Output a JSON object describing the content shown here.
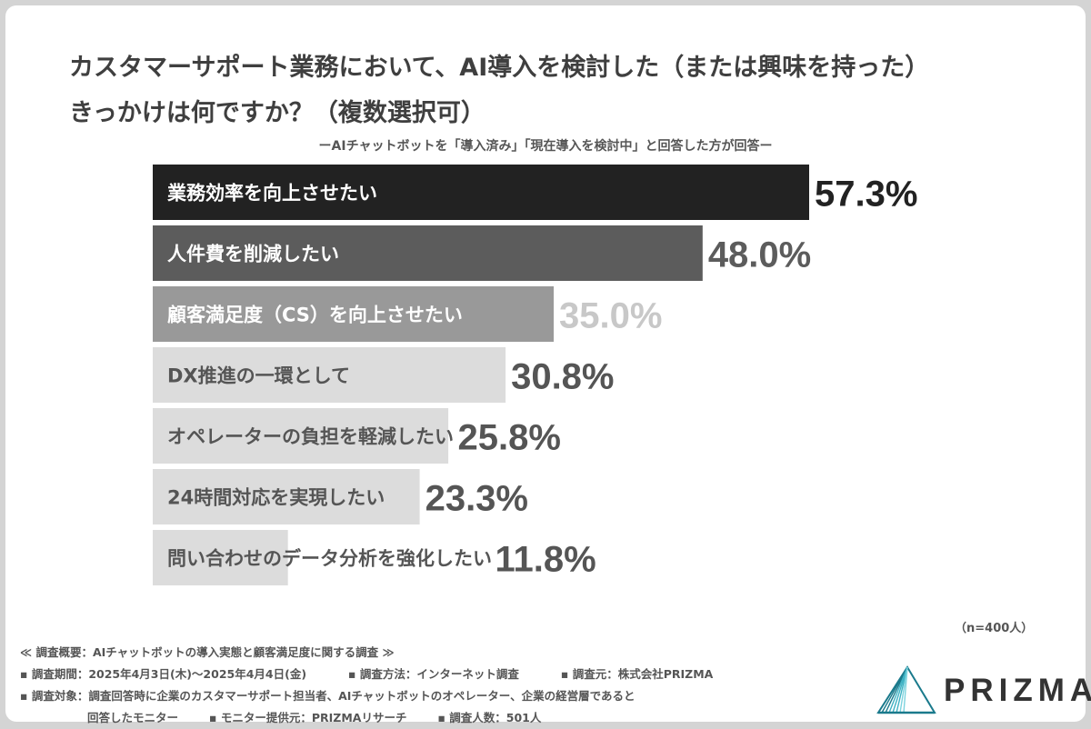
{
  "title_line1": "カスタマーサポート業務において、AI導入を検討した（または興味を持った）",
  "title_line2": "きっかけは何ですか？（複数選択可）",
  "subtitle": "ーAIチャットボットを「導入済み」「現在導入を検討中」と回答した方が回答ー",
  "chart_data": {
    "type": "bar",
    "orientation": "horizontal",
    "title": "カスタマーサポート業務において、AI導入を検討した（または興味を持った）きっかけは何ですか？（複数選択可）",
    "categories": [
      "業務効率を向上させたい",
      "人件費を削減したい",
      "顧客満足度（CS）を向上させたい",
      "DX推進の一環として",
      "オペレーターの負担を軽減したい",
      "24時間対応を実現したい",
      "問い合わせのデータ分析を強化したい"
    ],
    "values": [
      57.3,
      48.0,
      35.0,
      30.8,
      25.8,
      23.3,
      11.8
    ],
    "value_labels": [
      "57.3%",
      "48.0%",
      "35.0%",
      "30.8%",
      "25.8%",
      "23.3%",
      "11.8%"
    ],
    "bar_colors": [
      "#222222",
      "#5c5c5c",
      "#999999",
      "#dcdcdc",
      "#dcdcdc",
      "#dcdcdc",
      "#dcdcdc"
    ],
    "label_colors": [
      "#ffffff",
      "#ffffff",
      "#ffffff",
      "#555555",
      "#555555",
      "#555555",
      "#555555"
    ],
    "value_colors": [
      "#222222",
      "#5c5c5c",
      "#c8c8c8",
      "#555555",
      "#555555",
      "#555555",
      "#555555"
    ],
    "grid": false,
    "legend": "none"
  },
  "sample_size": "（n=400人）",
  "footer": {
    "line1": "≪ 調査概要：AIチャットボットの導入実態と顧客満足度に関する調査 ≫",
    "period": "▪ 調査期間：2025年4月3日(木)〜2025年4月4日(金)",
    "method": "▪ 調査方法：インターネット調査",
    "source": "▪ 調査元：株式会社PRIZMA",
    "target": "▪ 調査対象：調査回答時に企業のカスタマーサポート担当者、AIチャットボットのオペレーター、企業の経営層であると",
    "target_cont": "回答したモニター",
    "provider": "▪ モニター提供元：PRIZMAリサーチ",
    "count": "▪ 調査人数：501人"
  },
  "logo": {
    "text": "PRIZMA",
    "colors": [
      "#1a7a8c",
      "#3fb2c4",
      "#7dd3de"
    ]
  }
}
